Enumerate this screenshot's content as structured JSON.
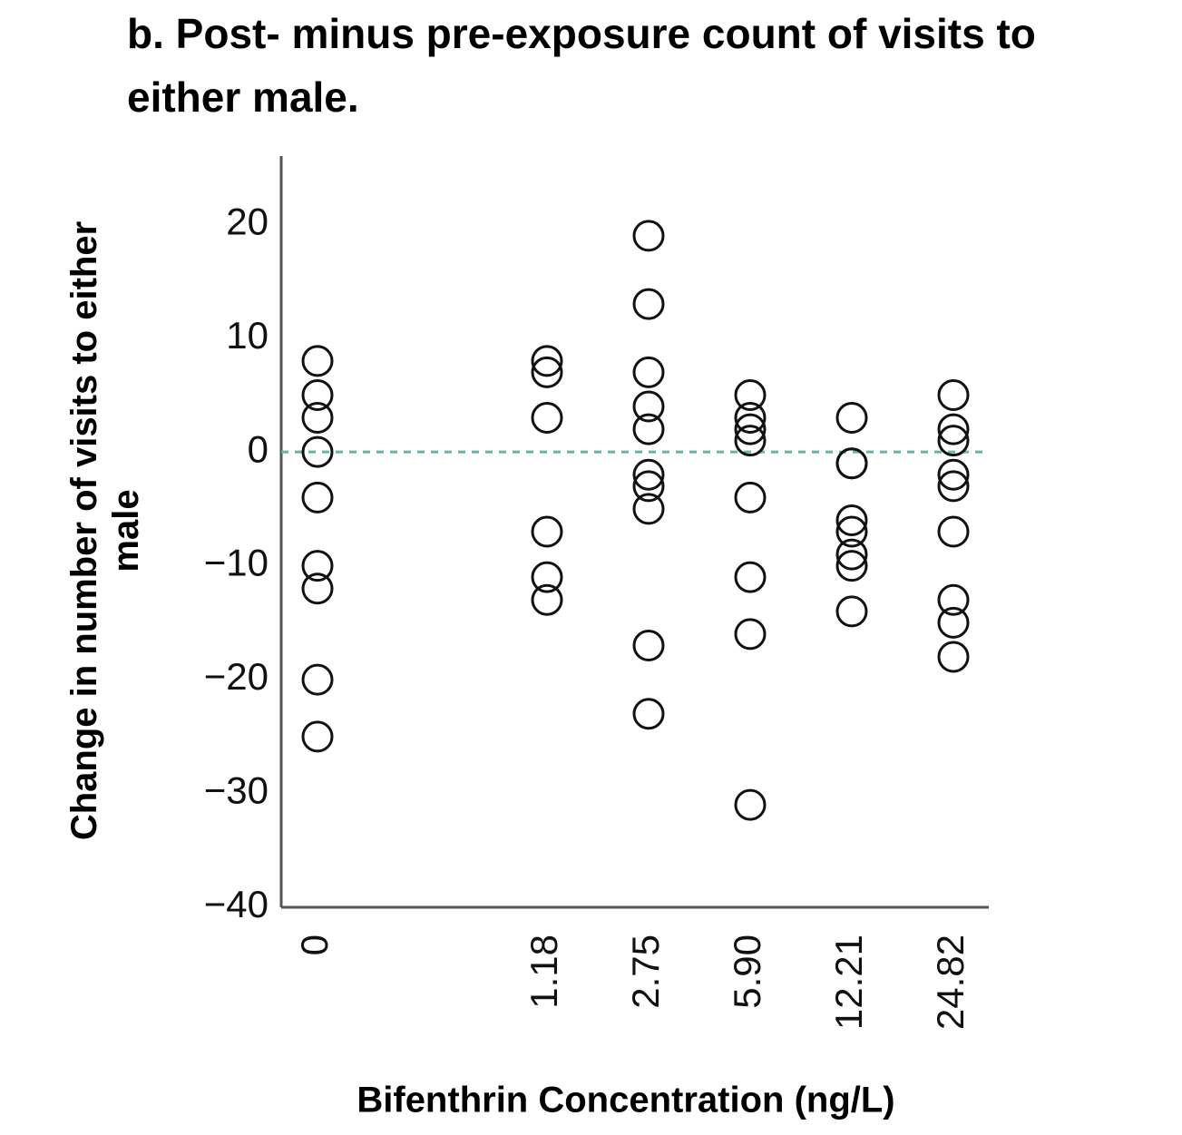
{
  "chart_data": {
    "type": "scatter",
    "title": "b. Post- minus pre-exposure count of visits to either male.",
    "x_label": "Bifenthrin Concentration (ng/L)",
    "y_label": "Change in number of visits to either male",
    "categories": [
      "0",
      "1.18",
      "2.75",
      "5.90",
      "12.21",
      "24.82"
    ],
    "values": [
      [
        8,
        5,
        3,
        0,
        -4,
        -10,
        -12,
        -20,
        -25
      ],
      [
        8,
        7,
        3,
        -7,
        -11,
        -13
      ],
      [
        19,
        13,
        7,
        4,
        2,
        -2,
        -3,
        -5,
        -17,
        -23
      ],
      [
        5,
        3,
        2,
        1,
        -4,
        -11,
        -16,
        -31
      ],
      [
        3,
        -1,
        -1,
        -6,
        -7,
        -9,
        -10,
        -14
      ],
      [
        5,
        2,
        1,
        -2,
        -3,
        -7,
        -13,
        -15,
        -18
      ]
    ],
    "color": "#111111",
    "ylim": [
      -40,
      26
    ],
    "yticks": [
      {
        "value": -40,
        "label": "−40"
      },
      {
        "value": -30,
        "label": "−30"
      },
      {
        "value": -20,
        "label": "−20"
      },
      {
        "value": -10,
        "label": "−10"
      },
      0,
      10,
      20
    ],
    "reference_line": {
      "value": 0,
      "color": "#5fb8a6"
    }
  }
}
